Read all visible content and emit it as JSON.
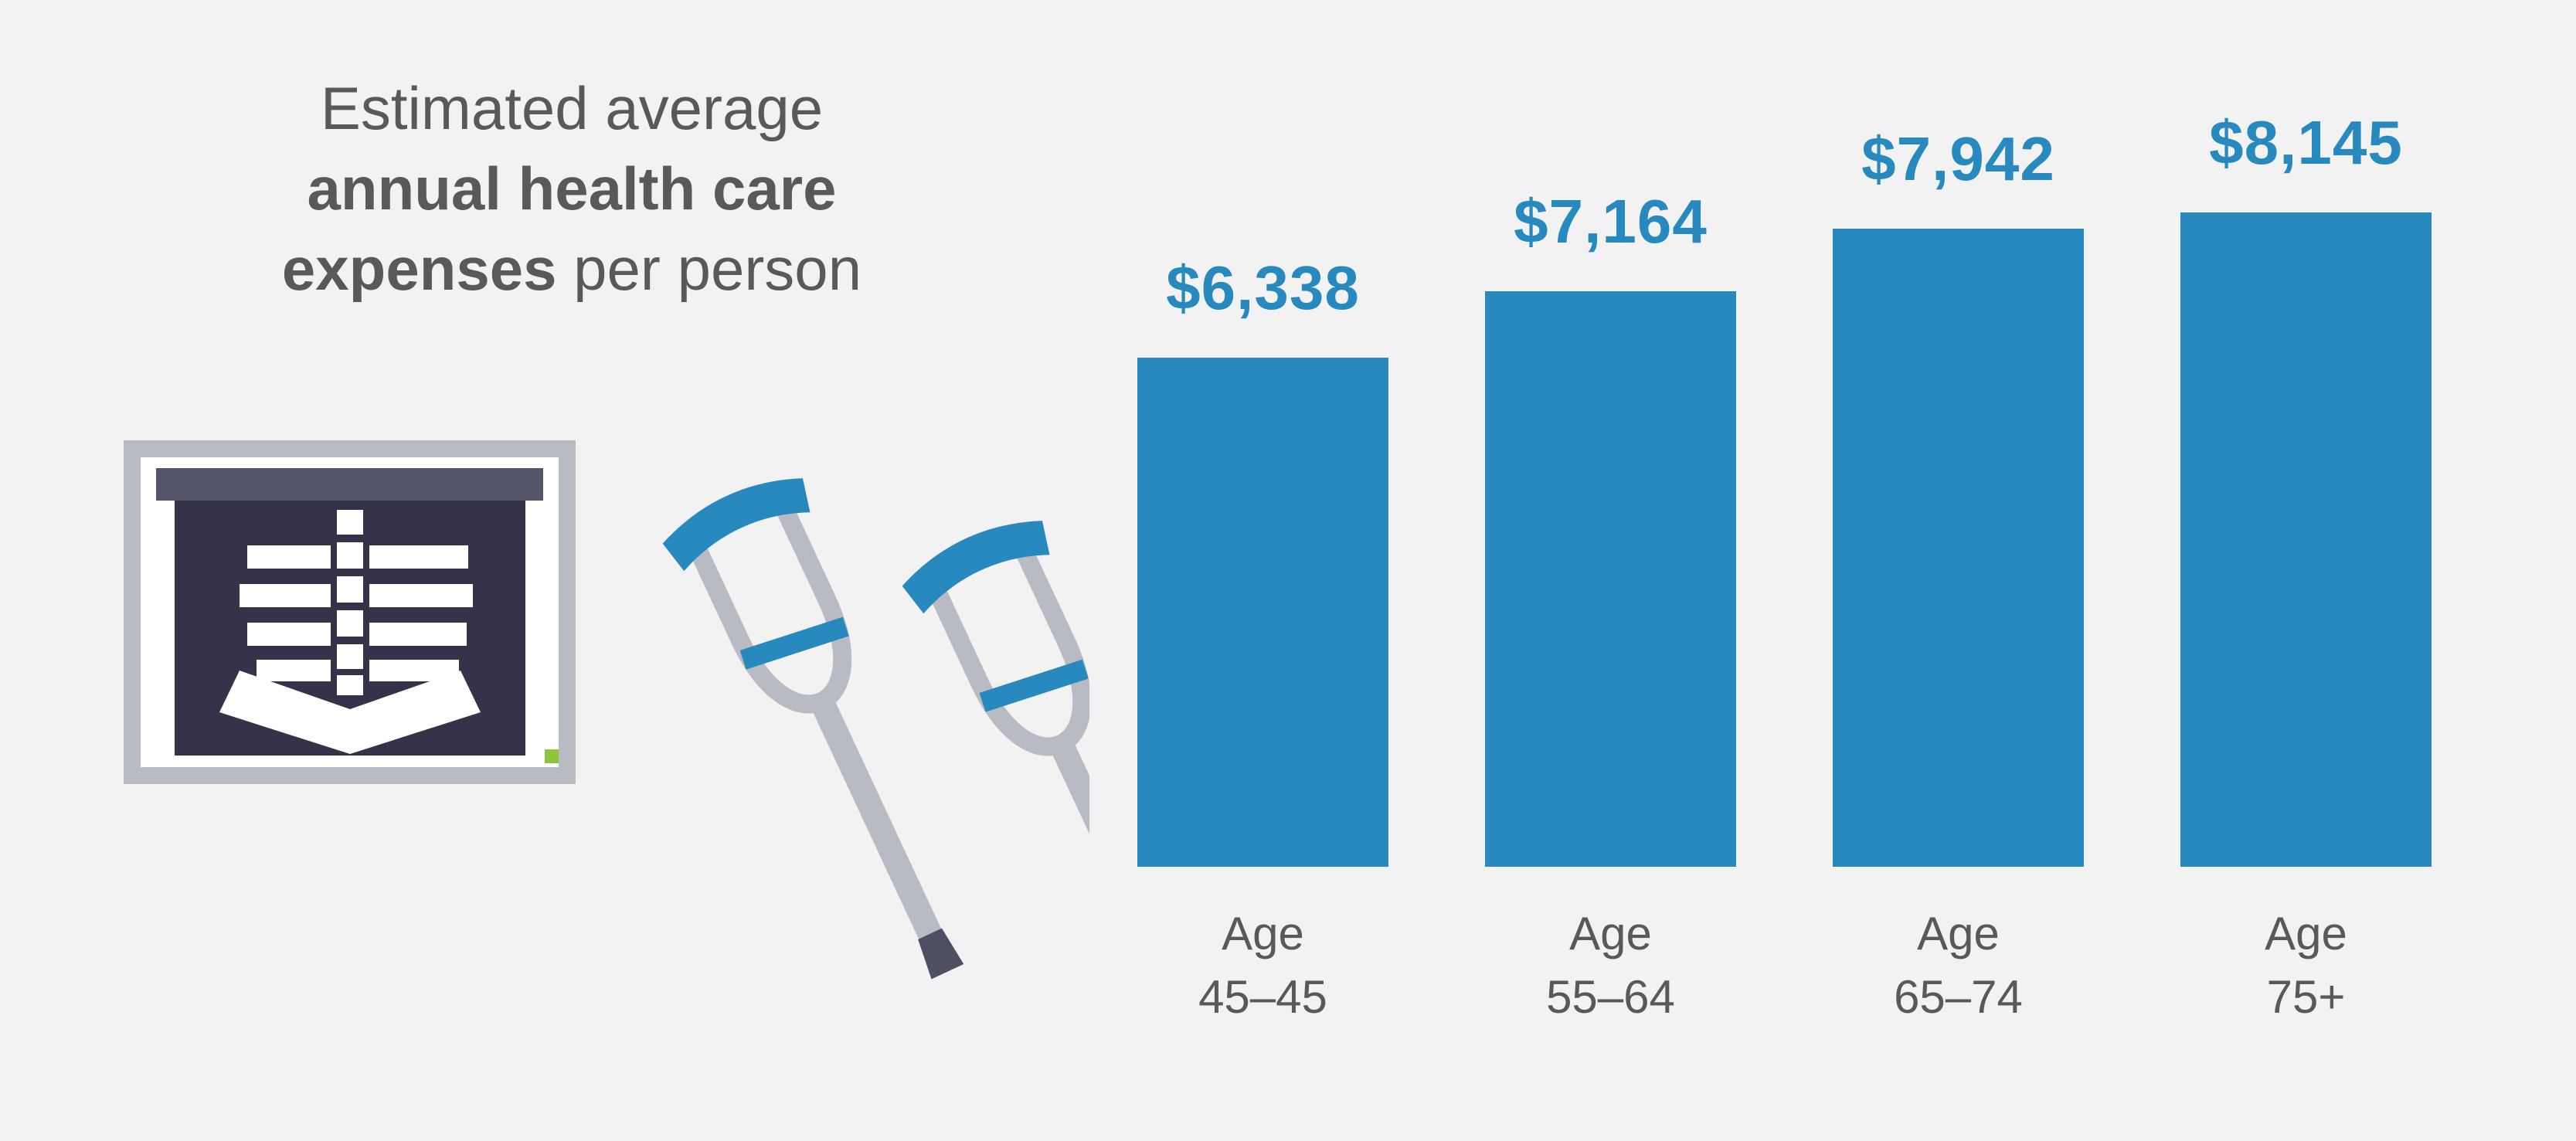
{
  "title": {
    "line1": "Estimated average",
    "line2": "annual health care",
    "line3_bold": "expenses",
    "line3_rest": " per person"
  },
  "colors": {
    "background": "#f2f2f3",
    "bar_blue": "#2789be",
    "text_gray": "#58595b",
    "frame_gray": "#b9bbc4",
    "slate_dark": "#54556b",
    "film_navy": "#343349",
    "green_accent": "#8cc63f",
    "tip_dark": "#4e4f63",
    "white": "#ffffff"
  },
  "illustration": {
    "xray_icon": "xray-viewer-icon",
    "crutches_icon": "crutches-icon"
  },
  "chart_data": {
    "type": "bar",
    "title": "Estimated average annual health care expenses per person",
    "categories": [
      "Age 45–45",
      "Age 55–64",
      "Age 65–74",
      "Age 75+"
    ],
    "category_lines": [
      [
        "Age",
        "45–45"
      ],
      [
        "Age",
        "55–64"
      ],
      [
        "Age",
        "65–74"
      ],
      [
        "Age",
        "75+"
      ]
    ],
    "values": [
      6338,
      7164,
      7942,
      8145
    ],
    "value_labels": [
      "$6,338",
      "$7,164",
      "$7,942",
      "$8,145"
    ],
    "xlabel": "",
    "ylabel": "",
    "ylim": [
      0,
      8145
    ],
    "grid": false,
    "legend": false,
    "bar_color": "#2789be"
  }
}
